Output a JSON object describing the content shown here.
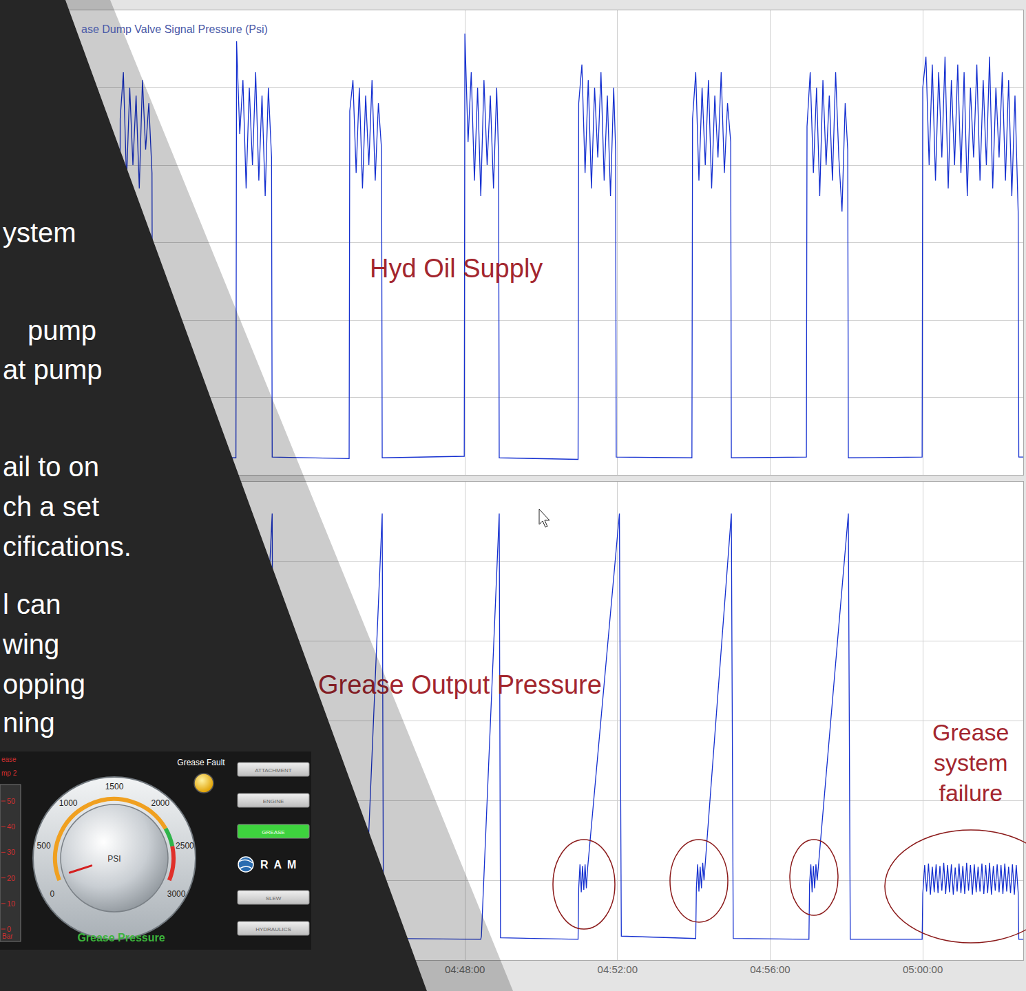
{
  "chart_data": [
    {
      "type": "line",
      "title": "ase Dump Valve Signal Pressure (Psi)",
      "annotations": [
        "Hyd Oil Supply"
      ],
      "color": "#1530d0",
      "x": [
        "04:35:49",
        "04:38:57",
        "04:38:58",
        "04:39:03",
        "04:39:08",
        "04:39:13",
        "04:39:18",
        "04:39:23",
        "04:39:28",
        "04:39:33",
        "04:39:38",
        "04:39:43",
        "04:39:48",
        "04:39:49",
        "04:42:00",
        "04:42:01",
        "04:42:06",
        "04:42:11",
        "04:42:16",
        "04:42:21",
        "04:42:26",
        "04:42:31",
        "04:42:36",
        "04:42:41",
        "04:42:46",
        "04:42:51",
        "04:42:56",
        "04:42:57",
        "04:44:58",
        "04:44:59",
        "04:45:04",
        "04:45:09",
        "04:45:14",
        "04:45:19",
        "04:45:24",
        "04:45:29",
        "04:45:34",
        "04:45:39",
        "04:45:44",
        "04:45:49",
        "04:45:50",
        "04:47:59",
        "04:48:00",
        "04:48:05",
        "04:48:10",
        "04:48:15",
        "04:48:20",
        "04:48:25",
        "04:48:30",
        "04:48:35",
        "04:48:40",
        "04:48:45",
        "04:48:50",
        "04:48:53",
        "04:48:54",
        "04:50:58",
        "04:50:59",
        "04:51:04",
        "04:51:09",
        "04:51:14",
        "04:51:19",
        "04:51:24",
        "04:51:29",
        "04:51:34",
        "04:51:39",
        "04:51:44",
        "04:51:49",
        "04:51:54",
        "04:51:57",
        "04:51:58",
        "04:53:57",
        "04:53:58",
        "04:54:03",
        "04:54:08",
        "04:54:13",
        "04:54:18",
        "04:54:23",
        "04:54:28",
        "04:54:33",
        "04:54:38",
        "04:54:43",
        "04:54:48",
        "04:54:53",
        "04:54:58",
        "04:54:59",
        "04:56:57",
        "04:56:58",
        "04:57:03",
        "04:57:08",
        "04:57:13",
        "04:57:18",
        "04:57:23",
        "04:57:28",
        "04:57:33",
        "04:57:38",
        "04:57:43",
        "04:57:48",
        "04:57:53",
        "04:57:58",
        "04:58:02",
        "04:58:03",
        "04:59:59",
        "05:00:00",
        "05:00:05",
        "05:00:10",
        "05:00:15",
        "05:00:20",
        "05:00:25",
        "05:00:30",
        "05:00:35",
        "05:00:40",
        "05:00:45",
        "05:00:50",
        "05:00:55",
        "05:01:00",
        "05:01:05",
        "05:01:10",
        "05:01:15",
        "05:01:20",
        "05:01:25",
        "05:01:30",
        "05:01:35",
        "05:01:40",
        "05:01:45",
        "05:01:50",
        "05:01:55",
        "05:02:00",
        "05:02:05",
        "05:02:10",
        "05:02:15",
        "05:02:20",
        "05:02:25",
        "05:02:30",
        "05:02:31",
        "05:02:38"
      ],
      "values": [
        2.3,
        2.3,
        46,
        52,
        38,
        50,
        40,
        49,
        37,
        51,
        42,
        48,
        39,
        2.4,
        2.2,
        56,
        44,
        51,
        37,
        50,
        40,
        52,
        38,
        49,
        36,
        50,
        41,
        2.3,
        2.1,
        47,
        51,
        39,
        50,
        37,
        49,
        40,
        51,
        38,
        48,
        42,
        2.2,
        2.4,
        57,
        43,
        52,
        38,
        50,
        36,
        51,
        40,
        49,
        37,
        50,
        41,
        2.2,
        2.0,
        48,
        53,
        39,
        51,
        37,
        50,
        41,
        52,
        38,
        49,
        36,
        50,
        42,
        2.3,
        2.2,
        46,
        52,
        38,
        50,
        40,
        51,
        37,
        49,
        41,
        52,
        39,
        48,
        43,
        2.2,
        2.3,
        45,
        52,
        39,
        50,
        36,
        51,
        40,
        49,
        38,
        52,
        41,
        34,
        48,
        42,
        2.2,
        2.3,
        50,
        54,
        40,
        53,
        38,
        52,
        41,
        54,
        37,
        51,
        40,
        53,
        39,
        52,
        36,
        50,
        41,
        53,
        38,
        51,
        40,
        54,
        37,
        50,
        41,
        52,
        38,
        51,
        36,
        49,
        34,
        2.3,
        2.3
      ],
      "xlim": [
        "04:35:49",
        "05:02:38"
      ],
      "xticks": [
        "04:48:00",
        "04:52:00",
        "04:56:00",
        "05:00:00"
      ],
      "ylim": [
        0,
        60
      ],
      "yticks": [
        0,
        10,
        20,
        30,
        40,
        50,
        60
      ],
      "grid": true,
      "tick_labels": false
    },
    {
      "type": "line",
      "annotations": [
        "Grease Output Pressure",
        "Grease system failure"
      ],
      "color": "#1530d0",
      "x": [
        "04:35:49",
        "04:42:25",
        "04:42:26",
        "04:42:57",
        "04:42:59",
        "04:45:21",
        "04:45:22",
        "04:45:50",
        "04:45:52",
        "04:48:25",
        "04:48:26",
        "04:48:54",
        "04:48:56",
        "04:50:58",
        "04:50:59",
        "04:51:01",
        "04:51:03",
        "04:51:05",
        "04:51:07",
        "04:51:09",
        "04:51:11",
        "04:51:13",
        "04:52:03",
        "04:52:06",
        "04:54:03",
        "04:54:04",
        "04:54:06",
        "04:54:08",
        "04:54:10",
        "04:54:12",
        "04:54:14",
        "04:54:16",
        "04:54:59",
        "04:55:02",
        "04:57:01",
        "04:57:02",
        "04:57:04",
        "04:57:06",
        "04:57:08",
        "04:57:10",
        "04:57:12",
        "04:57:14",
        "04:58:03",
        "04:58:06",
        "04:59:59",
        "05:00:00",
        "05:00:03",
        "05:00:06",
        "05:00:09",
        "05:00:12",
        "05:00:15",
        "05:00:18",
        "05:00:21",
        "05:00:24",
        "05:00:27",
        "05:00:30",
        "05:00:33",
        "05:00:36",
        "05:00:39",
        "05:00:42",
        "05:00:45",
        "05:00:48",
        "05:00:51",
        "05:00:54",
        "05:00:57",
        "05:01:00",
        "05:01:03",
        "05:01:06",
        "05:01:09",
        "05:01:12",
        "05:01:15",
        "05:01:18",
        "05:01:21",
        "05:01:24",
        "05:01:27",
        "05:01:30",
        "05:01:33",
        "05:01:36",
        "05:01:39",
        "05:01:42",
        "05:01:45",
        "05:01:48",
        "05:01:51",
        "05:01:54",
        "05:01:57",
        "05:02:00",
        "05:02:03",
        "05:02:06",
        "05:02:09",
        "05:02:12",
        "05:02:15",
        "05:02:18",
        "05:02:21",
        "05:02:24",
        "05:02:27",
        "05:02:30",
        "05:02:31",
        "05:02:38"
      ],
      "values": [
        2.6,
        2.6,
        4,
        56,
        2.8,
        2.7,
        3,
        56,
        2.7,
        2.6,
        3,
        56,
        2.8,
        2.6,
        9,
        12,
        8.5,
        11.8,
        8.8,
        12,
        9,
        11.5,
        56,
        3,
        2.7,
        9,
        12,
        8.6,
        11.7,
        9,
        12.2,
        10,
        56,
        2.7,
        2.6,
        9.5,
        12,
        8.5,
        11.8,
        9,
        12,
        10,
        56,
        2.6,
        2.6,
        8.3,
        11.9,
        8.6,
        12.1,
        8.2,
        11.7,
        8.5,
        12.0,
        8.4,
        11.8,
        8.7,
        12.2,
        8.3,
        11.9,
        8.5,
        12.0,
        8.2,
        11.6,
        8.6,
        12.1,
        8.4,
        11.8,
        8.3,
        12.2,
        8.7,
        11.9,
        8.2,
        12.0,
        8.5,
        11.7,
        8.6,
        12.1,
        8.3,
        11.9,
        8.4,
        12.2,
        8.2,
        11.8,
        8.7,
        12.0,
        8.5,
        11.9,
        8.3,
        12.1,
        8.6,
        11.7,
        8.4,
        12.0,
        8.2,
        11.9,
        8.5,
        2.6,
        2.6
      ],
      "xlim": [
        "04:35:49",
        "05:02:38"
      ],
      "xticks": [
        "04:48:00",
        "04:52:00",
        "04:56:00",
        "05:00:00"
      ],
      "ylim": [
        0,
        60
      ],
      "yticks": [
        0,
        10,
        20,
        30,
        40,
        50,
        60
      ],
      "grid": true,
      "tick_labels": "x"
    }
  ],
  "slide_text": [
    "ystem",
    "pump",
    "at pump",
    "ail to on",
    "ch a set",
    "cifications.",
    "l can",
    "wing",
    "opping",
    "ning"
  ],
  "gauge": {
    "title": "Grease Pressure",
    "unit": "PSI",
    "range": [
      0,
      3000
    ],
    "ticks": [
      0,
      500,
      1000,
      1500,
      2000,
      2500,
      3000
    ],
    "value": 150,
    "bands": [
      {
        "range": [
          100,
          2250
        ],
        "color": "#f0a020"
      },
      {
        "range": [
          2250,
          2480
        ],
        "color": "#2fb34a"
      },
      {
        "range": [
          2480,
          2900
        ],
        "color": "#e0302a"
      }
    ],
    "fault_label": "Grease Fault",
    "buttons": [
      "ATTACHMENT",
      "ENGINE",
      "GREASE",
      "SLEW",
      "HYDRAULICS"
    ],
    "active_button": "GREASE",
    "logo": "RAM",
    "bar_scale": {
      "labels": [
        "ease",
        "mp 2"
      ],
      "ticks": [
        0,
        10,
        20,
        30,
        40,
        50
      ],
      "unit": "Bar"
    }
  }
}
